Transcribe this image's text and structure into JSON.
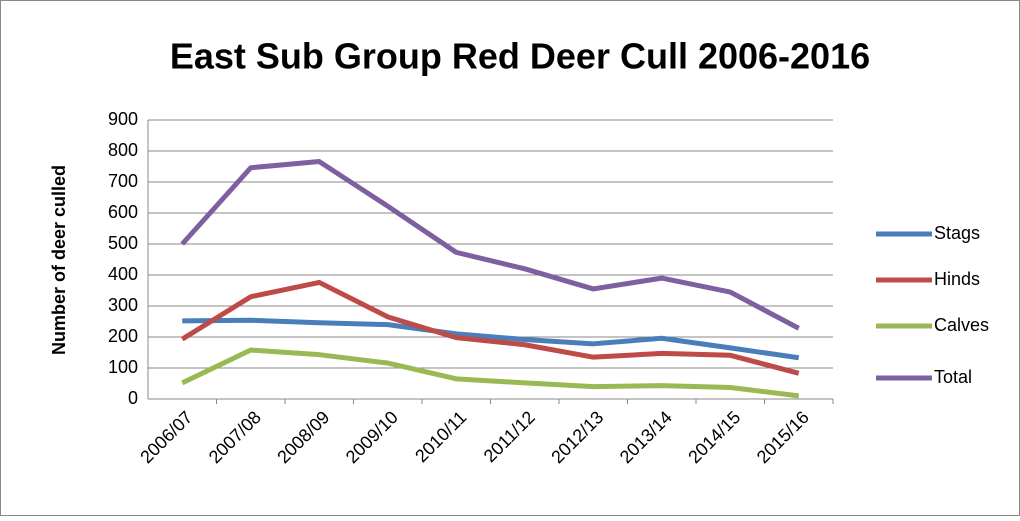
{
  "chart_data": {
    "type": "line",
    "title": "East Sub Group Red Deer Cull 2006-2016",
    "y_label": "Number of deer culled",
    "categories": [
      "2006/07",
      "2007/08",
      "2008/09",
      "2009/10",
      "2010/11",
      "2011/12",
      "2012/13",
      "2013/14",
      "2014/15",
      "2015/16"
    ],
    "series": [
      {
        "name": "Stags",
        "color": "#4a7ebb",
        "values": [
          252,
          254,
          246,
          240,
          210,
          192,
          178,
          196,
          165,
          133
        ]
      },
      {
        "name": "Hinds",
        "color": "#be4b48",
        "values": [
          193,
          330,
          376,
          265,
          198,
          175,
          135,
          147,
          141,
          83
        ]
      },
      {
        "name": "Calves",
        "color": "#98b954",
        "values": [
          52,
          158,
          143,
          116,
          65,
          52,
          40,
          43,
          37,
          10
        ]
      },
      {
        "name": "Total",
        "color": "#7d60a0",
        "values": [
          500,
          746,
          766,
          622,
          473,
          420,
          355,
          390,
          345,
          228
        ]
      }
    ],
    "ylim": [
      0,
      900
    ],
    "yticks": [
      0,
      100,
      200,
      300,
      400,
      500,
      600,
      700,
      800,
      900
    ],
    "grid": true,
    "legend": "right"
  }
}
